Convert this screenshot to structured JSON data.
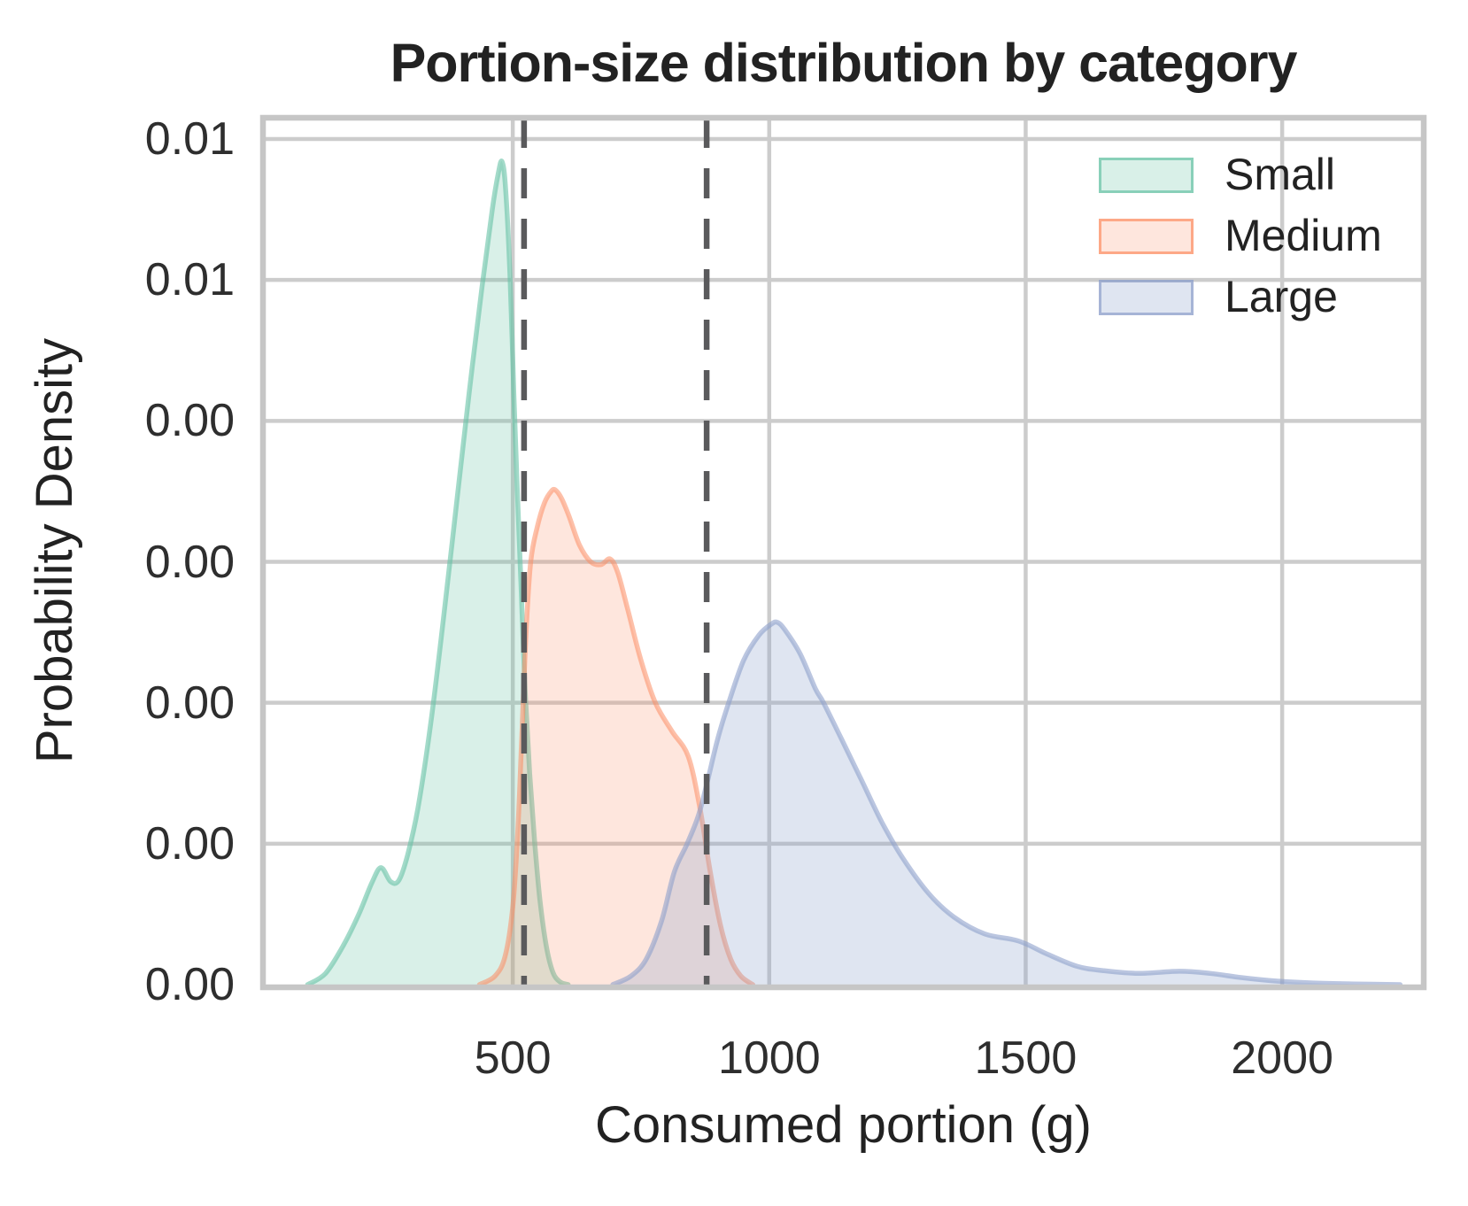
{
  "title": "Portion-size distribution by category",
  "chart_data": {
    "type": "area",
    "kind": "kde-density",
    "title": "Portion-size distribution by category",
    "xlabel": "Consumed portion (g)",
    "ylabel": "Probability Density",
    "xlim": [
      13,
      2276
    ],
    "ylim": [
      0,
      0.00615
    ],
    "grid": true,
    "background": "#ffffff",
    "grid_color": "#cccccc",
    "spine_color": "#c6c6c6",
    "legend_position": "upper right",
    "x_ticks": [
      {
        "value": 500,
        "label": "500"
      },
      {
        "value": 1000,
        "label": "1000"
      },
      {
        "value": 1500,
        "label": "1500"
      },
      {
        "value": 2000,
        "label": "2000"
      }
    ],
    "y_ticks": [
      {
        "value": 0.0,
        "label": "0.00"
      },
      {
        "value": 0.001,
        "label": "0.00"
      },
      {
        "value": 0.002,
        "label": "0.00"
      },
      {
        "value": 0.003,
        "label": "0.00"
      },
      {
        "value": 0.004,
        "label": "0.00"
      },
      {
        "value": 0.005,
        "label": "0.01"
      },
      {
        "value": 0.006,
        "label": "0.01"
      }
    ],
    "reference_lines": [
      {
        "x": 522,
        "style": "dashed",
        "color": "#5a5a5c"
      },
      {
        "x": 878,
        "style": "dashed",
        "color": "#5a5a5c"
      }
    ],
    "series": [
      {
        "name": "Small",
        "color": "#66c2a5",
        "fill_alpha": 0.25,
        "line_alpha": 0.6,
        "points": [
          [
            100,
            0
          ],
          [
            135,
            8e-05
          ],
          [
            170,
            0.00028
          ],
          [
            200,
            0.0005
          ],
          [
            225,
            0.00072
          ],
          [
            243,
            0.00083
          ],
          [
            262,
            0.00073
          ],
          [
            278,
            0.00074
          ],
          [
            295,
            0.00092
          ],
          [
            315,
            0.00125
          ],
          [
            340,
            0.00185
          ],
          [
            365,
            0.0026
          ],
          [
            390,
            0.0034
          ],
          [
            415,
            0.0042
          ],
          [
            440,
            0.00495
          ],
          [
            460,
            0.0055
          ],
          [
            472,
            0.00576
          ],
          [
            479,
            0.00584
          ],
          [
            486,
            0.00565
          ],
          [
            495,
            0.005
          ],
          [
            502,
            0.0042
          ],
          [
            509,
            0.0035
          ],
          [
            516,
            0.00285
          ],
          [
            524,
            0.0021
          ],
          [
            533,
            0.0015
          ],
          [
            543,
            0.001
          ],
          [
            553,
            0.0006
          ],
          [
            565,
            0.00028
          ],
          [
            578,
            9e-05
          ],
          [
            592,
            2e-05
          ],
          [
            608,
            0
          ]
        ]
      },
      {
        "name": "Medium",
        "color": "#fc8d62",
        "fill_alpha": 0.22,
        "line_alpha": 0.55,
        "points": [
          [
            435,
            0
          ],
          [
            465,
            6e-05
          ],
          [
            485,
            0.0002
          ],
          [
            500,
            0.00055
          ],
          [
            510,
            0.0011
          ],
          [
            518,
            0.0018
          ],
          [
            526,
            0.0025
          ],
          [
            535,
            0.003
          ],
          [
            548,
            0.00325
          ],
          [
            562,
            0.00342
          ],
          [
            575,
            0.0035
          ],
          [
            583,
            0.00351
          ],
          [
            595,
            0.00345
          ],
          [
            610,
            0.00332
          ],
          [
            630,
            0.00312
          ],
          [
            652,
            0.003
          ],
          [
            672,
            0.00298
          ],
          [
            690,
            0.00302
          ],
          [
            705,
            0.00292
          ],
          [
            725,
            0.00265
          ],
          [
            750,
            0.0023
          ],
          [
            778,
            0.002
          ],
          [
            810,
            0.0018
          ],
          [
            842,
            0.00162
          ],
          [
            865,
            0.00125
          ],
          [
            885,
            0.0008
          ],
          [
            905,
            0.00042
          ],
          [
            925,
            0.00018
          ],
          [
            945,
            6e-05
          ],
          [
            968,
            0
          ]
        ]
      },
      {
        "name": "Large",
        "color": "#8da0cb",
        "fill_alpha": 0.28,
        "line_alpha": 0.6,
        "points": [
          [
            695,
            0
          ],
          [
            730,
            6e-05
          ],
          [
            760,
            0.00018
          ],
          [
            790,
            0.00045
          ],
          [
            815,
            0.0008
          ],
          [
            840,
            0.001
          ],
          [
            862,
            0.0012
          ],
          [
            880,
            0.00145
          ],
          [
            900,
            0.00175
          ],
          [
            921,
            0.002
          ],
          [
            950,
            0.0023
          ],
          [
            980,
            0.00248
          ],
          [
            1005,
            0.00256
          ],
          [
            1016,
            0.00257
          ],
          [
            1030,
            0.00252
          ],
          [
            1060,
            0.00235
          ],
          [
            1090,
            0.0021
          ],
          [
            1106,
            0.002
          ],
          [
            1140,
            0.00175
          ],
          [
            1180,
            0.00145
          ],
          [
            1220,
            0.00115
          ],
          [
            1260,
            0.0009
          ],
          [
            1310,
            0.00065
          ],
          [
            1360,
            0.00048
          ],
          [
            1420,
            0.00036
          ],
          [
            1486,
            0.00031
          ],
          [
            1540,
            0.00022
          ],
          [
            1600,
            0.00013
          ],
          [
            1650,
            0.0001
          ],
          [
            1720,
            8e-05
          ],
          [
            1800,
            9.5e-05
          ],
          [
            1860,
            8e-05
          ],
          [
            1920,
            5e-05
          ],
          [
            1990,
            2.5e-05
          ],
          [
            2060,
            1.2e-05
          ],
          [
            2140,
            5e-06
          ],
          [
            2230,
            0
          ]
        ]
      }
    ],
    "legend": [
      {
        "label": "Small"
      },
      {
        "label": "Medium"
      },
      {
        "label": "Large"
      }
    ]
  }
}
